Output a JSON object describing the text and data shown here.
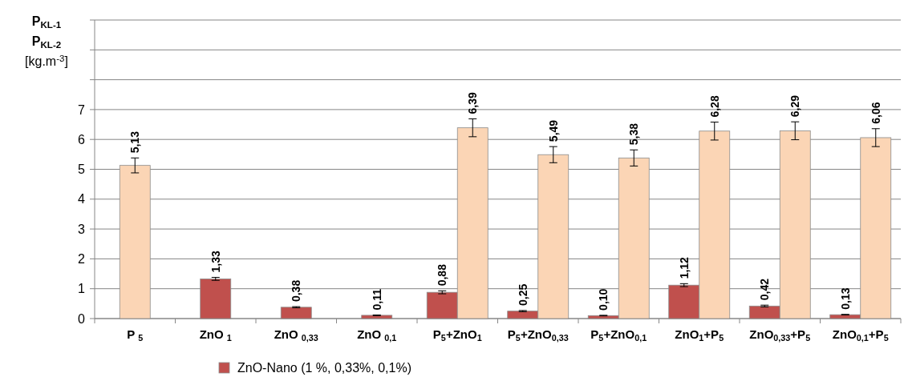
{
  "chart_data": {
    "type": "bar",
    "ylabel": "P$_{KL-1}$\nP$_{KL-2}$\n[kg.m$^{-3}$]",
    "categories": [
      "P $_{5}$",
      "ZnO $_{1}$",
      "ZnO $_{0,33}$",
      "ZnO $_{0,1}$",
      "P$_{5}$+ZnO$_{1}$",
      "P$_{5}$+ZnO$_{0,33}$",
      "P$_{5}$+ZnO$_{0,1}$",
      "ZnO$_{1}$+P$_{5}$",
      "ZnO$_{0,33}$+P$_{5}$",
      "ZnO$_{0,1}$+P$_{5}$"
    ],
    "series": [
      {
        "name": "ZnO-Nano  (1 %, 0,33%, 0,1%)",
        "color": "#c0504d",
        "values": [
          null,
          1.33,
          0.38,
          0.11,
          0.88,
          0.25,
          0.1,
          1.12,
          0.42,
          0.13
        ],
        "errors": [
          null,
          0.05,
          0.02,
          0.01,
          0.05,
          0.02,
          0.01,
          0.05,
          0.03,
          0.01
        ],
        "value_labels": [
          null,
          "1,33",
          "0,38",
          "0,11",
          "0,88",
          "0,25",
          "0,10",
          "1,12",
          "0,42",
          "0,13"
        ]
      },
      {
        "color": "#fbd5b5",
        "values": [
          5.13,
          null,
          null,
          null,
          6.39,
          5.49,
          5.38,
          6.28,
          6.29,
          6.06
        ],
        "errors": [
          0.25,
          null,
          null,
          null,
          0.3,
          0.27,
          0.27,
          0.3,
          0.3,
          0.3
        ],
        "value_labels": [
          "5,13",
          null,
          null,
          null,
          "6,39",
          "5,49",
          "5,38",
          "6,28",
          "6,29",
          "6,06"
        ]
      }
    ],
    "ylim": [
      0,
      10
    ],
    "yticks": [
      0,
      1,
      2,
      3,
      4,
      5,
      6,
      7,
      {
        "value": 8,
        "label": null
      },
      {
        "value": 9,
        "label": null
      },
      {
        "value": 10,
        "label": null
      }
    ],
    "grid": "y",
    "legend": "bottom"
  }
}
